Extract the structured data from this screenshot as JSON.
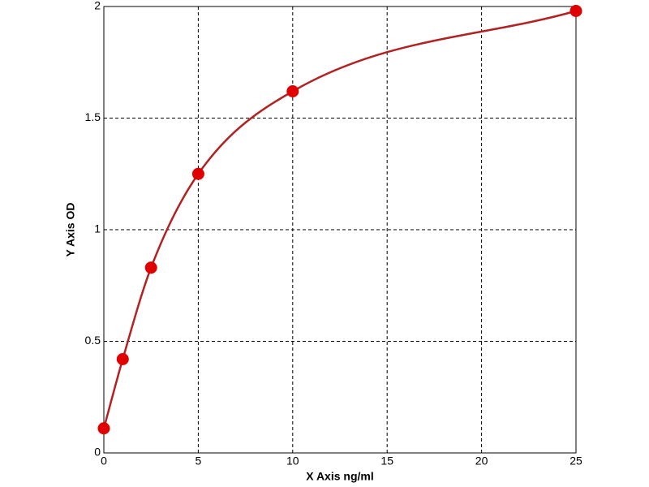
{
  "chart_data": {
    "type": "scatter",
    "x_label": "X Axis ng/ml",
    "y_label": "Y Axis OD",
    "x": [
      0,
      1,
      2.5,
      5,
      10,
      25
    ],
    "values": [
      0.11,
      0.42,
      0.83,
      1.25,
      1.62,
      1.98
    ],
    "color": "#e00000",
    "line_color": "#b22222",
    "curve": true,
    "xlim": [
      0,
      25
    ],
    "xticks": [
      0,
      5,
      10,
      15,
      20,
      25
    ],
    "ylim": [
      0,
      2
    ],
    "yticks": [
      0,
      0.5,
      1,
      1.5,
      2
    ],
    "grid": true
  }
}
